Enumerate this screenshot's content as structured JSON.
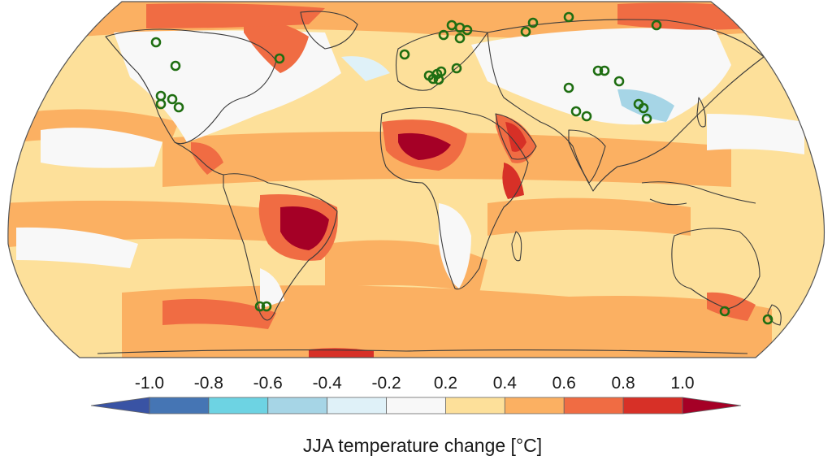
{
  "colorbar": {
    "label": "JJA temperature change [°C]",
    "ticks": [
      "-1.0",
      "-0.8",
      "-0.6",
      "-0.4",
      "-0.2",
      "0.2",
      "0.4",
      "0.6",
      "0.8",
      "1.0"
    ],
    "bins": [
      {
        "color": "#3953a4"
      },
      {
        "color": "#4575b4"
      },
      {
        "color": "#6dd3e3"
      },
      {
        "color": "#a6d5e6"
      },
      {
        "color": "#dff1f8"
      },
      {
        "color": "#f8f8f8"
      },
      {
        "color": "#fde09a"
      },
      {
        "color": "#fbb062"
      },
      {
        "color": "#f06c43"
      },
      {
        "color": "#d73027"
      },
      {
        "color": "#a50026"
      }
    ]
  },
  "map": {
    "projection": "Robinson",
    "coastline_color": "#3a3a3a",
    "site_marker_color": "#1f6e12",
    "site_marker_style": "open-circle"
  }
}
